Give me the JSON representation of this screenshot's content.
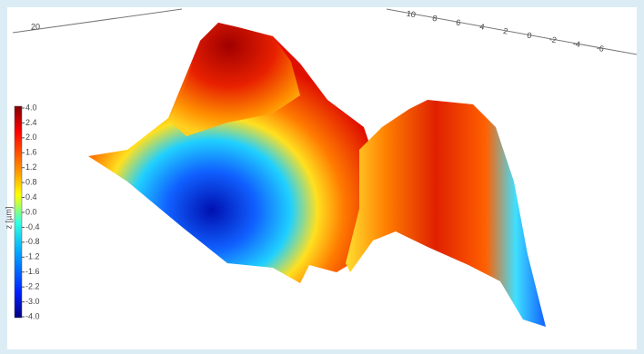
{
  "top_axis": {
    "label": "20"
  },
  "right_axis": {
    "ticks": [
      "10",
      "8",
      "6",
      "4",
      "2",
      "0",
      "-2",
      "-4",
      "-6"
    ]
  },
  "colorbar": {
    "label": "z [µm]",
    "ticks": [
      "4.0",
      "2.4",
      "2.0",
      "1.6",
      "1.2",
      "0.8",
      "0.4",
      "0.0",
      "-0.4",
      "-0.8",
      "-1.2",
      "-1.6",
      "-2.2",
      "-3.0",
      "-4.0"
    ]
  }
}
